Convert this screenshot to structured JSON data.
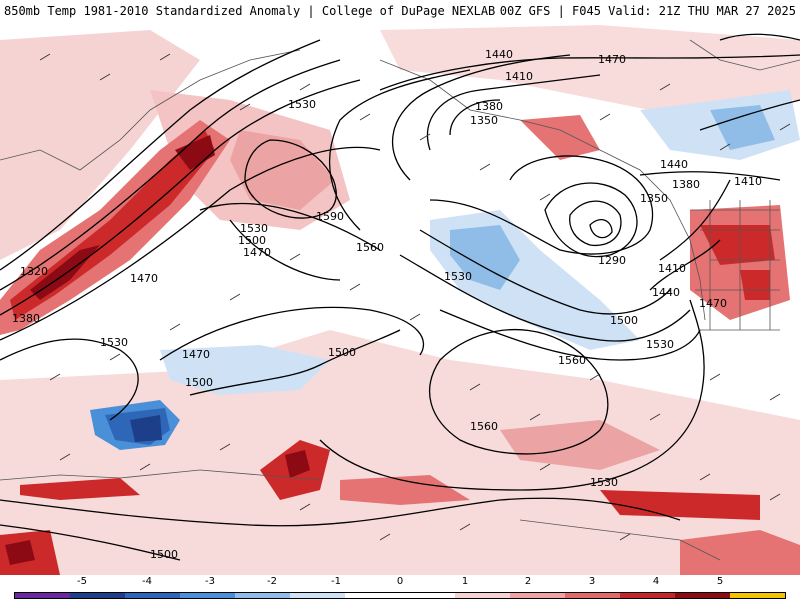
{
  "header": {
    "title": "850mb Temp 1981-2010 Standardized Anomaly | College of DuPage NEXLAB",
    "run_info": "00Z GFS | F045 Valid: 21Z THU MAR 27 2025"
  },
  "map": {
    "contour_labels": [
      "1440",
      "1470",
      "1410",
      "1380",
      "1350",
      "1530",
      "1590",
      "1560",
      "1530",
      "1500",
      "1470",
      "1320",
      "1380",
      "1470",
      "1530",
      "1470",
      "1500",
      "1500",
      "1530",
      "1290",
      "1410",
      "1440",
      "1380",
      "1350",
      "1410",
      "1440",
      "1470",
      "1500",
      "1530",
      "1560",
      "1560",
      "1530",
      "1500"
    ]
  },
  "colorbar": {
    "ticks": [
      "-5",
      "-4",
      "-3",
      "-2",
      "-1",
      "0",
      "1",
      "2",
      "3",
      "4",
      "5"
    ],
    "colors": [
      "#6a2a9e",
      "#1d3f8a",
      "#2f67b8",
      "#4a90d9",
      "#8fbde8",
      "#cfe2f5",
      "#ffffff",
      "#ffffff",
      "#f7d2d2",
      "#efa3a3",
      "#e06a6a",
      "#c8232b",
      "#8b0a14",
      "#f5c400"
    ]
  }
}
